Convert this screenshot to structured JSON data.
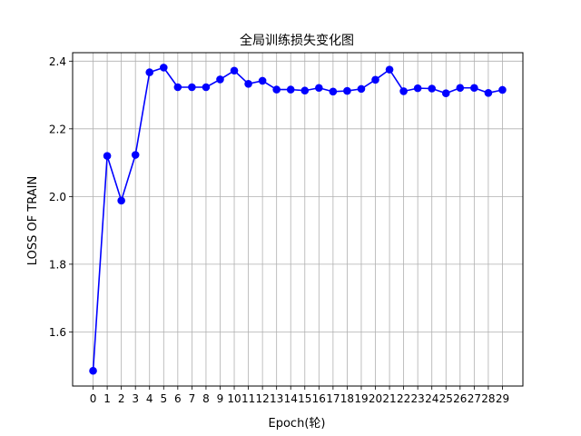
{
  "chart_data": {
    "type": "line",
    "title": "全局训练损失变化图",
    "xlabel": "Epoch(轮)",
    "ylabel": "LOSS OF TRAIN",
    "x": [
      0,
      1,
      2,
      3,
      4,
      5,
      6,
      7,
      8,
      9,
      10,
      11,
      12,
      13,
      14,
      15,
      16,
      17,
      18,
      19,
      20,
      21,
      22,
      23,
      24,
      25,
      26,
      27,
      28,
      29
    ],
    "series": [
      {
        "values": [
          1.485,
          2.12,
          1.988,
          2.123,
          2.367,
          2.381,
          2.323,
          2.323,
          2.323,
          2.346,
          2.372,
          2.333,
          2.342,
          2.316,
          2.316,
          2.313,
          2.321,
          2.31,
          2.312,
          2.318,
          2.345,
          2.375,
          2.311,
          2.32,
          2.319,
          2.305,
          2.321,
          2.321,
          2.306,
          2.315
        ],
        "color": "#0000ff"
      }
    ],
    "xticks": [
      "0",
      "1",
      "2",
      "3",
      "4",
      "5",
      "6",
      "7",
      "8",
      "9",
      "10",
      "11",
      "12",
      "13",
      "14",
      "15",
      "16",
      "17",
      "18",
      "19",
      "20",
      "21",
      "22",
      "23",
      "24",
      "25",
      "26",
      "27",
      "28",
      "29"
    ],
    "yticks": [
      1.6,
      1.8,
      2.0,
      2.2,
      2.4
    ],
    "ytick_labels": [
      "1.6",
      "1.8",
      "2.0",
      "2.2",
      "2.4"
    ],
    "ylim": [
      1.44,
      2.425
    ],
    "xlim": [
      -1.45,
      30.45
    ],
    "grid": true,
    "marker": "circle"
  }
}
